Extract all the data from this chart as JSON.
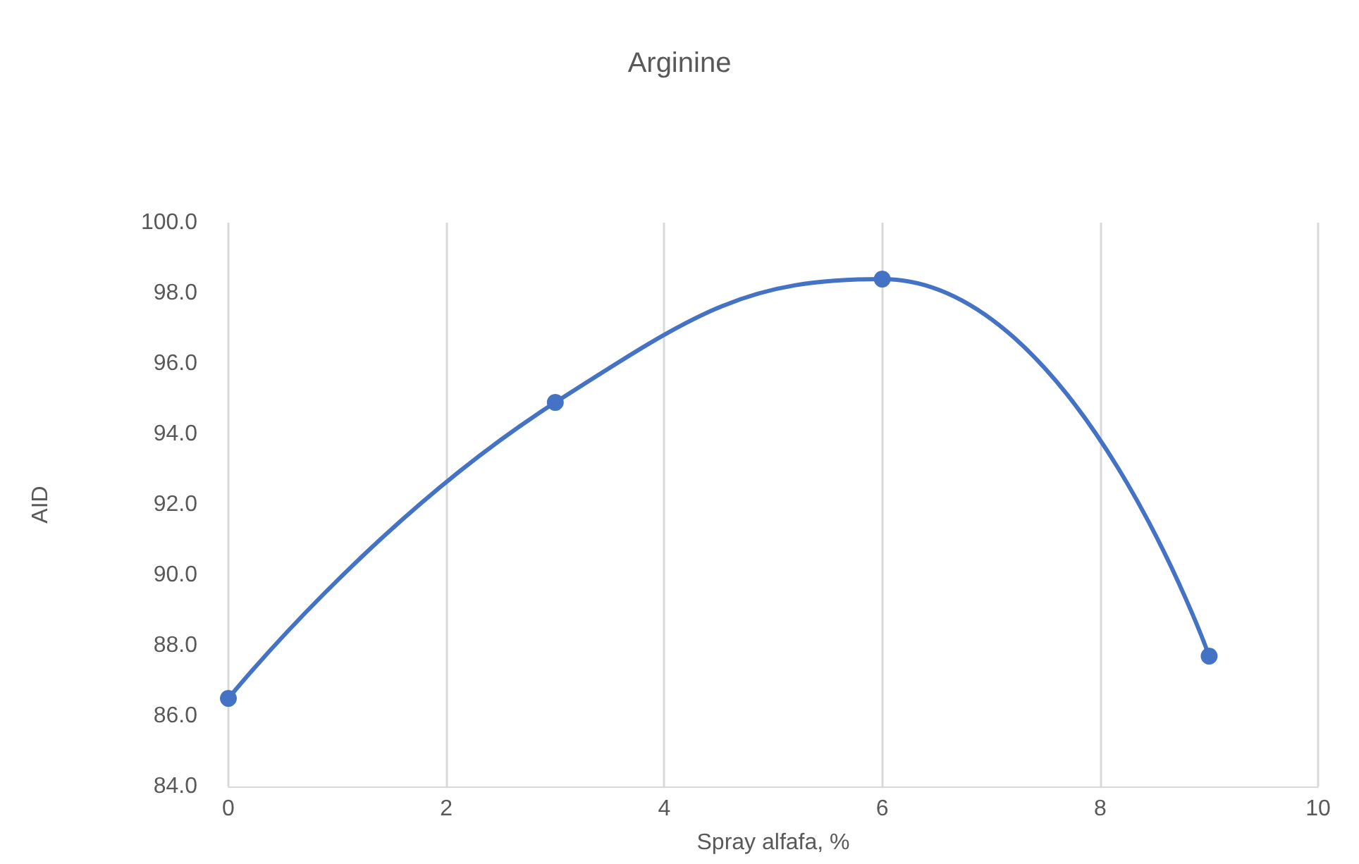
{
  "chart_data": {
    "type": "line",
    "title": "Arginine",
    "xlabel": "Spray alfafa, %",
    "ylabel": "AID",
    "x": [
      0,
      3,
      6,
      9
    ],
    "series": [
      {
        "color": "#4472c4",
        "values": [
          86.5,
          94.9,
          98.4,
          87.7
        ]
      }
    ],
    "xlim": [
      0,
      10
    ],
    "xticks": [
      0,
      2,
      4,
      6,
      8,
      10
    ],
    "ylim": [
      84,
      100
    ],
    "yticks": [
      {
        "value": 84,
        "label": "84.0"
      },
      {
        "value": 86,
        "label": "86.0"
      },
      {
        "value": 88,
        "label": "88.0"
      },
      {
        "value": 90,
        "label": "90.0"
      },
      {
        "value": 92,
        "label": "92.0"
      },
      {
        "value": 94,
        "label": "94.0"
      },
      {
        "value": 96,
        "label": "96.0"
      },
      {
        "value": 98,
        "label": "98.0"
      },
      {
        "value": 100,
        "label": "100.0"
      }
    ],
    "grid": "x",
    "marker": "circle",
    "line_style": "solid"
  }
}
